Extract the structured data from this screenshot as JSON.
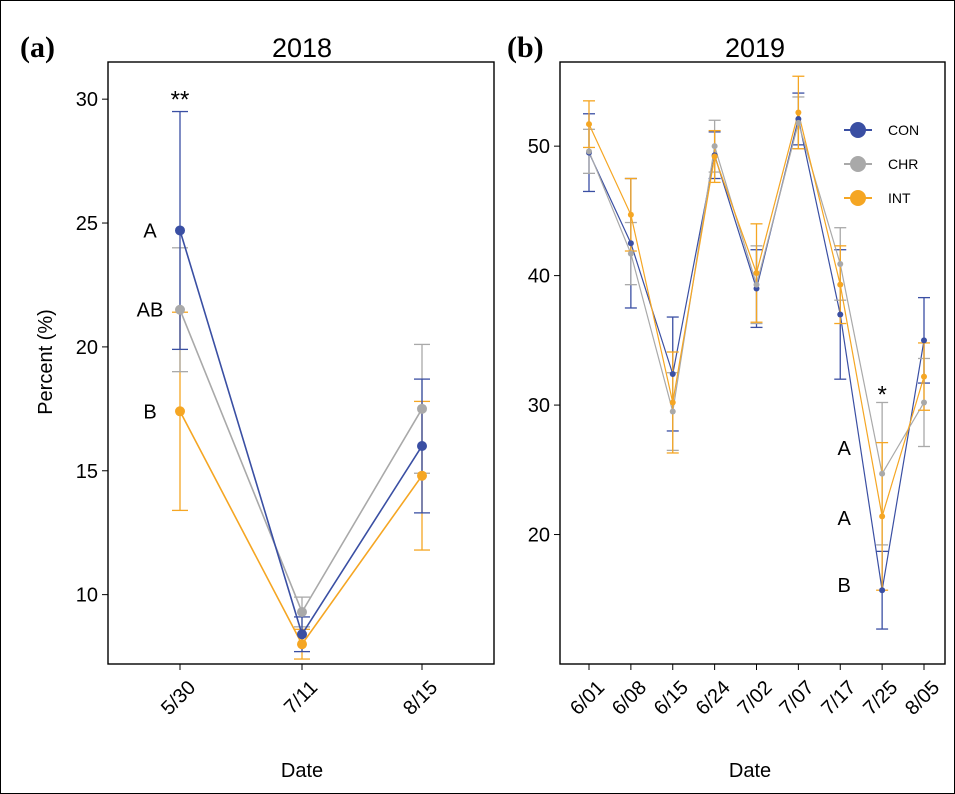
{
  "colors": {
    "CON": "#3a4fa3",
    "CHR": "#a9a9a9",
    "INT": "#f5a623"
  },
  "chart_data": [
    {
      "type": "line",
      "panel_label": "(a)",
      "title": "2018",
      "xlabel": "Date",
      "ylabel": "Percent (%)",
      "categories": [
        "5/30",
        "7/11",
        "8/15"
      ],
      "ylim": [
        7.2,
        31.5
      ],
      "yticks": [
        10,
        15,
        20,
        25,
        30
      ],
      "grid": false,
      "series": [
        {
          "key": "CON",
          "values": [
            24.7,
            8.4,
            16.0
          ],
          "errors": [
            4.8,
            0.7,
            2.7
          ]
        },
        {
          "key": "CHR",
          "values": [
            21.5,
            9.3,
            17.5
          ],
          "errors": [
            2.5,
            0.6,
            2.6
          ]
        },
        {
          "key": "INT",
          "values": [
            17.4,
            8.0,
            14.8
          ],
          "errors": [
            4.0,
            0.6,
            3.0
          ]
        }
      ],
      "letters": [
        {
          "category": "5/30",
          "key": "CON",
          "text": "A"
        },
        {
          "category": "5/30",
          "key": "CHR",
          "text": "AB"
        },
        {
          "category": "5/30",
          "key": "INT",
          "text": "B"
        }
      ],
      "significance": [
        {
          "category": "5/30",
          "text": "**"
        }
      ]
    },
    {
      "type": "line",
      "panel_label": "(b)",
      "title": "2019",
      "xlabel": "Date",
      "ylabel": "",
      "categories": [
        "6/01",
        "6/08",
        "6/15",
        "6/24",
        "7/02",
        "7/07",
        "7/17",
        "7/25",
        "8/05"
      ],
      "ylim": [
        10.0,
        56.5
      ],
      "yticks": [
        20,
        30,
        40,
        50
      ],
      "grid": false,
      "legend_position": "top-right",
      "series": [
        {
          "key": "CON",
          "values": [
            49.5,
            42.5,
            32.4,
            49.3,
            39.0,
            52.1,
            37.0,
            15.7,
            35.0
          ],
          "errors": [
            3.0,
            5.0,
            4.4,
            1.8,
            3.0,
            2.0,
            5.0,
            3.0,
            3.3
          ]
        },
        {
          "key": "CHR",
          "values": [
            49.6,
            41.7,
            29.5,
            50.0,
            39.3,
            51.8,
            40.9,
            24.7,
            30.2
          ],
          "errors": [
            1.7,
            2.4,
            3.0,
            2.0,
            3.0,
            2.0,
            2.8,
            5.5,
            3.4
          ]
        },
        {
          "key": "INT",
          "values": [
            51.7,
            44.7,
            30.2,
            49.2,
            40.2,
            52.6,
            39.3,
            21.4,
            32.2
          ],
          "errors": [
            1.8,
            2.8,
            3.9,
            2.0,
            3.8,
            2.8,
            3.0,
            5.7,
            2.6
          ]
        }
      ],
      "letters": [
        {
          "category": "7/25",
          "key": "CHR",
          "text": "A"
        },
        {
          "category": "7/25",
          "key": "INT",
          "text": "A"
        },
        {
          "category": "7/25",
          "key": "CON",
          "text": "B"
        }
      ],
      "significance": [
        {
          "category": "7/25",
          "text": "*"
        }
      ],
      "legend": [
        {
          "key": "CON",
          "label": "CON"
        },
        {
          "key": "CHR",
          "label": "CHR"
        },
        {
          "key": "INT",
          "label": "INT"
        }
      ]
    }
  ]
}
